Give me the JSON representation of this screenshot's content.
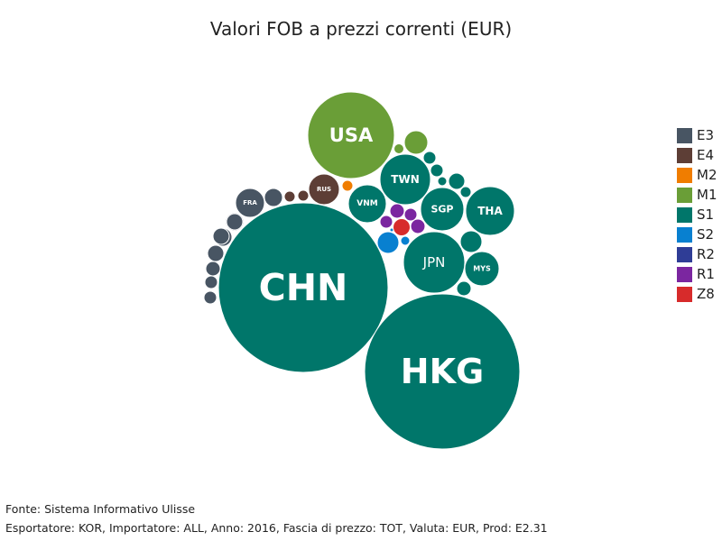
{
  "chart_data": {
    "type": "packed-bubble",
    "title": "Valori FOB a prezzi correnti (EUR)",
    "series": [
      {
        "name": "E3",
        "color": "#485563"
      },
      {
        "name": "E4",
        "color": "#5d3e36"
      },
      {
        "name": "M2",
        "color": "#f07d00"
      },
      {
        "name": "M1",
        "color": "#6a9e37"
      },
      {
        "name": "S1",
        "color": "#00766a"
      },
      {
        "name": "S2",
        "color": "#0880d0"
      },
      {
        "name": "R2",
        "color": "#2f3d96"
      },
      {
        "name": "R1",
        "color": "#7b26a0"
      },
      {
        "name": "Z8",
        "color": "#d72b2b"
      }
    ],
    "bubbles": [
      {
        "label": "CHN",
        "group": "S1",
        "value": 7960
      },
      {
        "label": "HKG",
        "group": "S1",
        "value": 7225
      },
      {
        "label": "USA",
        "group": "M1",
        "value": 2304
      },
      {
        "label": "TWN",
        "group": "S1",
        "value": 784
      },
      {
        "label": "JPN",
        "group": "S1",
        "value": 1156
      },
      {
        "label": "SGP",
        "group": "S1",
        "value": 576
      },
      {
        "label": "THA",
        "group": "S1",
        "value": 729
      },
      {
        "label": "VNM",
        "group": "S1",
        "value": 441
      },
      {
        "label": "MYS",
        "group": "S1",
        "value": 361
      },
      {
        "label": "RUS",
        "group": "E4",
        "value": 289
      },
      {
        "label": "FRA",
        "group": "E3",
        "value": 256
      },
      {
        "label": "",
        "group": "E3",
        "value": 100
      },
      {
        "label": "",
        "group": "E3",
        "value": 100
      },
      {
        "label": "",
        "group": "E3",
        "value": 110
      },
      {
        "label": "",
        "group": "E3",
        "value": 90
      },
      {
        "label": "",
        "group": "E3",
        "value": 80
      },
      {
        "label": "",
        "group": "E3",
        "value": 64
      },
      {
        "label": "",
        "group": "E3",
        "value": 49
      },
      {
        "label": "",
        "group": "E3",
        "value": 49
      },
      {
        "label": "",
        "group": "E3",
        "value": 81
      },
      {
        "label": "",
        "group": "E4",
        "value": 36
      },
      {
        "label": "",
        "group": "E4",
        "value": 36
      },
      {
        "label": "",
        "group": "M2",
        "value": 36
      },
      {
        "label": "",
        "group": "M1",
        "value": 169
      },
      {
        "label": "",
        "group": "M1",
        "value": 30
      },
      {
        "label": "",
        "group": "S1",
        "value": 144
      },
      {
        "label": "",
        "group": "S1",
        "value": 100
      },
      {
        "label": "",
        "group": "S1",
        "value": 81
      },
      {
        "label": "",
        "group": "S1",
        "value": 81
      },
      {
        "label": "",
        "group": "S1",
        "value": 64
      },
      {
        "label": "",
        "group": "S1",
        "value": 36
      },
      {
        "label": "",
        "group": "S1",
        "value": 30
      },
      {
        "label": "",
        "group": "S2",
        "value": 144
      },
      {
        "label": "",
        "group": "S2",
        "value": 25
      },
      {
        "label": "",
        "group": "S2",
        "value": 5
      },
      {
        "label": "",
        "group": "R1",
        "value": 64
      },
      {
        "label": "",
        "group": "R1",
        "value": 64
      },
      {
        "label": "",
        "group": "R1",
        "value": 49
      },
      {
        "label": "",
        "group": "R1",
        "value": 49
      },
      {
        "label": "",
        "group": "Z8",
        "value": 90
      }
    ]
  },
  "footer": {
    "source": "Fonte: Sistema Informativo Ulisse",
    "details": "Esportatore: KOR, Importatore: ALL, Anno: 2016, Fascia di prezzo: TOT, Valuta: EUR, Prod: E2.31"
  }
}
